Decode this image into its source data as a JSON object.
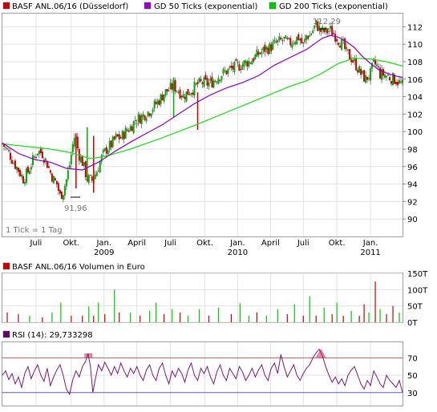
{
  "chart_data": [
    {
      "type": "candlestick",
      "legend": [
        {
          "name": "BASF ANL.06/16 (Düsseldorf)",
          "color": "#cc0000"
        },
        {
          "name": "GD 50 Ticks (exponential)",
          "color": "#9900cc"
        },
        {
          "name": "GD 200 Ticks (exponential)",
          "color": "#00cc00"
        }
      ],
      "tick_note": "1 Tick = 1 Tag",
      "y_ticks": [
        "90",
        "92",
        "94",
        "96",
        "98",
        "100",
        "102",
        "104",
        "106",
        "108",
        "110",
        "112"
      ],
      "ylim": [
        88,
        113.5
      ],
      "x_ticks": [
        "Juli",
        "Okt.",
        "Jan.",
        "April",
        "Juli",
        "Okt.",
        "Jan.",
        "April",
        "Juli",
        "Okt.",
        "Jan."
      ],
      "x_year_labels": [
        "2009",
        "2010",
        "2011"
      ],
      "annotations": {
        "max": "112,29",
        "min": "91,96"
      },
      "price_path": [
        [
          0,
          98.6
        ],
        [
          8,
          97.6
        ],
        [
          14,
          96.5
        ],
        [
          20,
          95.6
        ],
        [
          26,
          94.6
        ],
        [
          32,
          95.4
        ],
        [
          38,
          96.7
        ],
        [
          44,
          97.8
        ],
        [
          50,
          97.5
        ],
        [
          56,
          96.3
        ],
        [
          60,
          95.3
        ],
        [
          64,
          94.5
        ],
        [
          68,
          94.0
        ],
        [
          72,
          92.6
        ],
        [
          76,
          93.2
        ],
        [
          80,
          94.5
        ],
        [
          84,
          96.2
        ],
        [
          88,
          98.5
        ],
        [
          91,
          99.8
        ],
        [
          95,
          97.5
        ],
        [
          100,
          96.5
        ],
        [
          106,
          94.6
        ],
        [
          112,
          94.4
        ],
        [
          118,
          95.5
        ],
        [
          124,
          97.0
        ],
        [
          130,
          98.0
        ],
        [
          136,
          98.5
        ],
        [
          142,
          99.3
        ],
        [
          148,
          99.3
        ],
        [
          154,
          100.0
        ],
        [
          160,
          100.5
        ],
        [
          166,
          101.3
        ],
        [
          172,
          101.6
        ],
        [
          178,
          102.0
        ],
        [
          184,
          102.4
        ],
        [
          190,
          103.0
        ],
        [
          196,
          103.6
        ],
        [
          202,
          104.4
        ],
        [
          208,
          104.8
        ],
        [
          214,
          105.2
        ],
        [
          220,
          104.7
        ],
        [
          226,
          104.1
        ],
        [
          232,
          104.5
        ],
        [
          238,
          104.9
        ],
        [
          244,
          105.4
        ],
        [
          250,
          105.6
        ],
        [
          256,
          105.5
        ],
        [
          262,
          105.7
        ],
        [
          268,
          106.2
        ],
        [
          274,
          106.6
        ],
        [
          280,
          106.9
        ],
        [
          286,
          107.2
        ],
        [
          292,
          107.4
        ],
        [
          298,
          107.6
        ],
        [
          304,
          107.9
        ],
        [
          310,
          108.1
        ],
        [
          316,
          108.6
        ],
        [
          322,
          109.0
        ],
        [
          328,
          109.4
        ],
        [
          334,
          109.6
        ],
        [
          340,
          110.0
        ],
        [
          346,
          110.3
        ],
        [
          352,
          110.5
        ],
        [
          358,
          110.0
        ],
        [
          364,
          110.5
        ],
        [
          370,
          110.8
        ],
        [
          376,
          109.8
        ],
        [
          380,
          111.0
        ],
        [
          384,
          111.0
        ],
        [
          388,
          111.6
        ],
        [
          392,
          112.3
        ],
        [
          398,
          111.5
        ],
        [
          404,
          111.4
        ],
        [
          410,
          111.6
        ],
        [
          416,
          111.0
        ],
        [
          422,
          110.3
        ],
        [
          426,
          109.8
        ],
        [
          430,
          109.0
        ],
        [
          436,
          108.4
        ],
        [
          442,
          107.6
        ],
        [
          448,
          106.6
        ],
        [
          454,
          106.0
        ],
        [
          460,
          106.6
        ],
        [
          464,
          107.8
        ],
        [
          468,
          107.5
        ],
        [
          472,
          106.6
        ],
        [
          478,
          106.5
        ],
        [
          484,
          106.2
        ],
        [
          490,
          106.0
        ],
        [
          496,
          105.6
        ],
        [
          500,
          105.3
        ]
      ],
      "sma50_path": [
        [
          0,
          98.7
        ],
        [
          20,
          97.5
        ],
        [
          40,
          96.8
        ],
        [
          60,
          96.5
        ],
        [
          80,
          95.8
        ],
        [
          100,
          95.6
        ],
        [
          120,
          96.5
        ],
        [
          140,
          97.7
        ],
        [
          160,
          98.8
        ],
        [
          180,
          99.8
        ],
        [
          200,
          100.8
        ],
        [
          220,
          102.0
        ],
        [
          240,
          103.2
        ],
        [
          260,
          104.2
        ],
        [
          280,
          105.0
        ],
        [
          300,
          105.6
        ],
        [
          320,
          106.4
        ],
        [
          340,
          107.6
        ],
        [
          360,
          108.5
        ],
        [
          380,
          109.4
        ],
        [
          400,
          110.7
        ],
        [
          410,
          111.0
        ],
        [
          420,
          110.8
        ],
        [
          430,
          110.3
        ],
        [
          440,
          109.6
        ],
        [
          450,
          108.6
        ],
        [
          460,
          107.8
        ],
        [
          470,
          107.1
        ],
        [
          480,
          106.7
        ],
        [
          490,
          106.4
        ],
        [
          500,
          106.2
        ]
      ],
      "sma200_path": [
        [
          0,
          98.6
        ],
        [
          20,
          98.4
        ],
        [
          40,
          98.2
        ],
        [
          60,
          98.0
        ],
        [
          80,
          97.7
        ],
        [
          100,
          97.2
        ],
        [
          110,
          96.9
        ],
        [
          130,
          97.2
        ],
        [
          160,
          98.0
        ],
        [
          200,
          99.3
        ],
        [
          240,
          100.7
        ],
        [
          280,
          102.2
        ],
        [
          320,
          103.7
        ],
        [
          360,
          105.2
        ],
        [
          380,
          105.8
        ],
        [
          400,
          106.7
        ],
        [
          420,
          107.8
        ],
        [
          440,
          108.4
        ],
        [
          460,
          108.3
        ],
        [
          480,
          108.0
        ],
        [
          500,
          107.5
        ]
      ]
    },
    {
      "type": "bar",
      "legend": [
        {
          "name": "BASF ANL.06/16 Volumen in Euro",
          "color": "#cc0000"
        }
      ],
      "y_ticks": [
        "0T",
        "50T",
        "100T",
        "150T"
      ],
      "ylim": [
        0,
        150
      ],
      "up_color": "#00cc00",
      "down_color": "#cc0000",
      "bars_thousand_eur": [
        [
          6,
          30,
          "down"
        ],
        [
          20,
          25,
          "down"
        ],
        [
          34,
          20,
          "up"
        ],
        [
          50,
          15,
          "down"
        ],
        [
          62,
          30,
          "up"
        ],
        [
          73,
          60,
          "up"
        ],
        [
          86,
          20,
          "down"
        ],
        [
          100,
          20,
          "down"
        ],
        [
          108,
          48,
          "up"
        ],
        [
          114,
          20,
          "down"
        ],
        [
          120,
          60,
          "up"
        ],
        [
          128,
          25,
          "down"
        ],
        [
          140,
          100,
          "up"
        ],
        [
          146,
          30,
          "down"
        ],
        [
          160,
          30,
          "up"
        ],
        [
          172,
          20,
          "down"
        ],
        [
          184,
          35,
          "up"
        ],
        [
          192,
          60,
          "up"
        ],
        [
          202,
          25,
          "down"
        ],
        [
          212,
          40,
          "up"
        ],
        [
          222,
          30,
          "down"
        ],
        [
          232,
          20,
          "up"
        ],
        [
          246,
          40,
          "up"
        ],
        [
          258,
          20,
          "down"
        ],
        [
          270,
          45,
          "up"
        ],
        [
          286,
          25,
          "down"
        ],
        [
          297,
          58,
          "up"
        ],
        [
          308,
          20,
          "up"
        ],
        [
          318,
          30,
          "down"
        ],
        [
          330,
          20,
          "up"
        ],
        [
          344,
          40,
          "up"
        ],
        [
          356,
          25,
          "down"
        ],
        [
          365,
          55,
          "up"
        ],
        [
          376,
          20,
          "down"
        ],
        [
          384,
          80,
          "up"
        ],
        [
          392,
          20,
          "down"
        ],
        [
          402,
          45,
          "up"
        ],
        [
          412,
          25,
          "down"
        ],
        [
          418,
          60,
          "up"
        ],
        [
          426,
          20,
          "down"
        ],
        [
          436,
          35,
          "up"
        ],
        [
          446,
          20,
          "down"
        ],
        [
          452,
          55,
          "down"
        ],
        [
          458,
          30,
          "up"
        ],
        [
          466,
          125,
          "down"
        ],
        [
          472,
          40,
          "up"
        ],
        [
          480,
          25,
          "down"
        ],
        [
          488,
          50,
          "down"
        ],
        [
          496,
          30,
          "up"
        ]
      ]
    },
    {
      "type": "line",
      "legend": [
        {
          "name": "RSI (14): 29,733298",
          "color": "#660066"
        }
      ],
      "y_ticks": [
        "30",
        "50",
        "70"
      ],
      "ylim": [
        15,
        88
      ],
      "reference_lines": [
        30,
        70
      ],
      "overbought_marks": [
        [
          107,
          74
        ],
        [
          398,
          80
        ]
      ],
      "rsi_path": [
        [
          0,
          50
        ],
        [
          4,
          55
        ],
        [
          8,
          45
        ],
        [
          12,
          52
        ],
        [
          16,
          40
        ],
        [
          20,
          48
        ],
        [
          24,
          36
        ],
        [
          28,
          52
        ],
        [
          32,
          60
        ],
        [
          36,
          46
        ],
        [
          40,
          55
        ],
        [
          44,
          62
        ],
        [
          48,
          50
        ],
        [
          52,
          43
        ],
        [
          56,
          58
        ],
        [
          60,
          38
        ],
        [
          64,
          48
        ],
        [
          68,
          56
        ],
        [
          72,
          62
        ],
        [
          76,
          50
        ],
        [
          80,
          34
        ],
        [
          84,
          28
        ],
        [
          88,
          45
        ],
        [
          92,
          55
        ],
        [
          96,
          48
        ],
        [
          100,
          60
        ],
        [
          104,
          66
        ],
        [
          107,
          75
        ],
        [
          110,
          60
        ],
        [
          113,
          30
        ],
        [
          116,
          45
        ],
        [
          120,
          62
        ],
        [
          124,
          55
        ],
        [
          128,
          65
        ],
        [
          132,
          58
        ],
        [
          136,
          50
        ],
        [
          140,
          60
        ],
        [
          144,
          52
        ],
        [
          148,
          64
        ],
        [
          152,
          55
        ],
        [
          156,
          48
        ],
        [
          160,
          58
        ],
        [
          164,
          52
        ],
        [
          168,
          60
        ],
        [
          172,
          50
        ],
        [
          176,
          44
        ],
        [
          180,
          56
        ],
        [
          184,
          62
        ],
        [
          188,
          50
        ],
        [
          192,
          44
        ],
        [
          196,
          58
        ],
        [
          200,
          64
        ],
        [
          204,
          50
        ],
        [
          208,
          40
        ],
        [
          212,
          55
        ],
        [
          216,
          48
        ],
        [
          220,
          58
        ],
        [
          224,
          52
        ],
        [
          228,
          42
        ],
        [
          232,
          56
        ],
        [
          236,
          64
        ],
        [
          240,
          50
        ],
        [
          244,
          44
        ],
        [
          248,
          58
        ],
        [
          252,
          52
        ],
        [
          256,
          60
        ],
        [
          260,
          48
        ],
        [
          264,
          40
        ],
        [
          268,
          54
        ],
        [
          272,
          62
        ],
        [
          276,
          50
        ],
        [
          280,
          44
        ],
        [
          284,
          58
        ],
        [
          288,
          52
        ],
        [
          292,
          46
        ],
        [
          296,
          60
        ],
        [
          300,
          54
        ],
        [
          304,
          44
        ],
        [
          308,
          50
        ],
        [
          312,
          58
        ],
        [
          316,
          48
        ],
        [
          320,
          56
        ],
        [
          324,
          62
        ],
        [
          328,
          50
        ],
        [
          332,
          44
        ],
        [
          336,
          58
        ],
        [
          340,
          64
        ],
        [
          344,
          52
        ],
        [
          348,
          74
        ],
        [
          352,
          60
        ],
        [
          356,
          48
        ],
        [
          360,
          55
        ],
        [
          364,
          62
        ],
        [
          368,
          50
        ],
        [
          372,
          44
        ],
        [
          376,
          52
        ],
        [
          380,
          58
        ],
        [
          384,
          62
        ],
        [
          388,
          70
        ],
        [
          392,
          76
        ],
        [
          396,
          80
        ],
        [
          400,
          72
        ],
        [
          404,
          60
        ],
        [
          408,
          50
        ],
        [
          412,
          42
        ],
        [
          416,
          48
        ],
        [
          420,
          40
        ],
        [
          424,
          46
        ],
        [
          428,
          38
        ],
        [
          432,
          50
        ],
        [
          436,
          56
        ],
        [
          440,
          60
        ],
        [
          444,
          50
        ],
        [
          448,
          40
        ],
        [
          452,
          34
        ],
        [
          456,
          44
        ],
        [
          460,
          38
        ],
        [
          464,
          55
        ],
        [
          468,
          48
        ],
        [
          472,
          40
        ],
        [
          476,
          36
        ],
        [
          480,
          50
        ],
        [
          484,
          44
        ],
        [
          488,
          40
        ],
        [
          492,
          36
        ],
        [
          496,
          44
        ],
        [
          500,
          30
        ]
      ]
    }
  ]
}
